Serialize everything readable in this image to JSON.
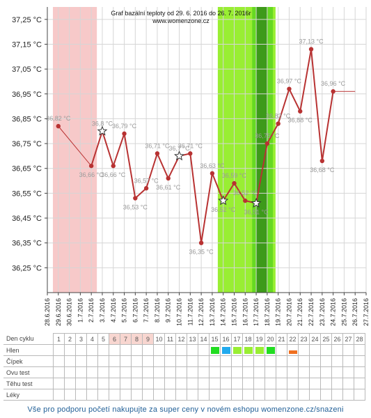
{
  "chart_data": {
    "type": "line",
    "title": "Graf bazální teploty od 29. 6. 2016 do 26. 7. 2016",
    "title_suffix": "r",
    "subtitle": "www.womenzone.cz",
    "xlabel": "",
    "ylabel": "",
    "ylim": [
      36.15,
      37.3
    ],
    "yticks": [
      "36,25 °C",
      "36,35 °C",
      "36,45 °C",
      "36,55 °C",
      "36,65 °C",
      "36,75 °C",
      "36,85 °C",
      "36,95 °C",
      "37,05 °C",
      "37,15 °C",
      "37,25 °C"
    ],
    "ytick_values": [
      36.25,
      36.35,
      36.45,
      36.55,
      36.65,
      36.75,
      36.85,
      36.95,
      37.05,
      37.15,
      37.25
    ],
    "grid": true,
    "categories": [
      "28.6.2016",
      "29.6.2016",
      "30.6.2016",
      "1.7.2016",
      "2.7.2016",
      "3.7.2016",
      "4.7.2016",
      "5.7.2016",
      "6.7.2016",
      "7.7.2016",
      "8.7.2016",
      "9.7.2016",
      "10.7.2016",
      "11.7.2016",
      "12.7.2016",
      "13.7.2016",
      "14.7.2016",
      "15.7.2016",
      "16.7.2016",
      "17.7.2016",
      "18.7.2016",
      "19.7.2016",
      "20.7.2016",
      "21.7.2016",
      "22.7.2016",
      "23.7.2016",
      "24.7.2016",
      "25.7.2016",
      "26.7.2016",
      "27.7.2016"
    ],
    "points": [
      {
        "x": "29.6.2016",
        "y": 36.82,
        "label": "36,82 °C",
        "star": false
      },
      {
        "x": "2.7.2016",
        "y": 36.66,
        "label": "36,66 °C",
        "star": false
      },
      {
        "x": "3.7.2016",
        "y": 36.8,
        "label": "36,8 °C",
        "star": true
      },
      {
        "x": "4.7.2016",
        "y": 36.66,
        "label": "36,66 °C",
        "star": false
      },
      {
        "x": "5.7.2016",
        "y": 36.79,
        "label": "36,79 °C",
        "star": false
      },
      {
        "x": "6.7.2016",
        "y": 36.53,
        "label": "36,53 °C",
        "star": false
      },
      {
        "x": "7.7.2016",
        "y": 36.57,
        "label": "36,57 °C",
        "star": false
      },
      {
        "x": "8.7.2016",
        "y": 36.71,
        "label": "36,71 °C",
        "star": false
      },
      {
        "x": "9.7.2016",
        "y": 36.61,
        "label": "36,61 °C",
        "star": false
      },
      {
        "x": "10.7.2016",
        "y": 36.7,
        "label": "36,7 °C",
        "star": true
      },
      {
        "x": "11.7.2016",
        "y": 36.71,
        "label": "36,71 °C",
        "star": false
      },
      {
        "x": "12.7.2016",
        "y": 36.35,
        "label": "36,35 °C",
        "star": false
      },
      {
        "x": "13.7.2016",
        "y": 36.63,
        "label": "36,63 °C",
        "star": false
      },
      {
        "x": "14.7.2016",
        "y": 36.52,
        "label": "36,52 °C",
        "star": true
      },
      {
        "x": "15.7.2016",
        "y": 36.59,
        "label": "36,59 °C",
        "star": false
      },
      {
        "x": "16.7.2016",
        "y": 36.52,
        "label": "36,52 °C",
        "star": false
      },
      {
        "x": "17.7.2016",
        "y": 36.51,
        "label": "36,51 °C",
        "star": true
      },
      {
        "x": "18.7.2016",
        "y": 36.75,
        "label": "36,75 °C",
        "star": false
      },
      {
        "x": "19.7.2016",
        "y": 36.83,
        "label": "36,83 °C",
        "star": false
      },
      {
        "x": "20.7.2016",
        "y": 36.97,
        "label": "36,97 °C",
        "star": false
      },
      {
        "x": "21.7.2016",
        "y": 36.88,
        "label": "36,88 °C",
        "star": false
      },
      {
        "x": "22.7.2016",
        "y": 37.13,
        "label": "37,13 °C",
        "star": false
      },
      {
        "x": "23.7.2016",
        "y": 36.68,
        "label": "36,68 °C",
        "star": false
      },
      {
        "x": "24.7.2016",
        "y": 36.96,
        "label": "36,96 °C",
        "star": false
      }
    ],
    "trailing_line": {
      "from": "24.7.2016",
      "to": "26.7.2016",
      "y": 36.96
    },
    "bands": [
      {
        "from": "28.6.2016",
        "to": "2.7.2016",
        "color": "#f7c9c9",
        "kind": "pink"
      },
      {
        "from": "13.7.2016",
        "to": "18.7.2016",
        "color": "#99ee33",
        "kind": "green"
      },
      {
        "from": "16.7.2016",
        "to": "17.7.2016",
        "color": "#66d922",
        "kind": "green-mid"
      },
      {
        "from": "16.7.2016",
        "to": "17.7.2016",
        "color": "#3d9a1a",
        "kind": "green-dark"
      }
    ],
    "colors": {
      "line": "#b83232",
      "point": "#b83232",
      "star_fill": "#ffffff",
      "star_stroke": "#333333"
    }
  },
  "table": {
    "rows": [
      {
        "label": "Den cyklu",
        "type": "days"
      },
      {
        "label": "Hlen",
        "type": "marks"
      },
      {
        "label": "Čípek",
        "type": "empty"
      },
      {
        "label": "Ovu test",
        "type": "empty"
      },
      {
        "label": "Těhu test",
        "type": "empty"
      },
      {
        "label": "Léky",
        "type": "empty"
      }
    ],
    "days": [
      "1",
      "2",
      "3",
      "4",
      "5",
      "6",
      "7",
      "8",
      "9",
      "10",
      "11",
      "12",
      "13",
      "14",
      "15",
      "16",
      "17",
      "18",
      "19",
      "20",
      "21",
      "22",
      "23",
      "24",
      "25",
      "26",
      "27",
      "28"
    ],
    "highlight_days": [
      6,
      7,
      8,
      9
    ],
    "hlen_marks": [
      {
        "day": 15,
        "color": "#22dd22"
      },
      {
        "day": 16,
        "color": "#22aaee"
      },
      {
        "day": 17,
        "color": "#99ee33"
      },
      {
        "day": 18,
        "color": "#99ee33"
      },
      {
        "day": 19,
        "color": "#99ee33"
      },
      {
        "day": 20,
        "color": "#22dd22"
      },
      {
        "day": 22,
        "color": "#f07020",
        "small": true
      }
    ]
  },
  "footer": {
    "text": "Vše pro podporu početí nakupujte za super ceny v novém eshopu womenzone.cz/snazeni"
  }
}
